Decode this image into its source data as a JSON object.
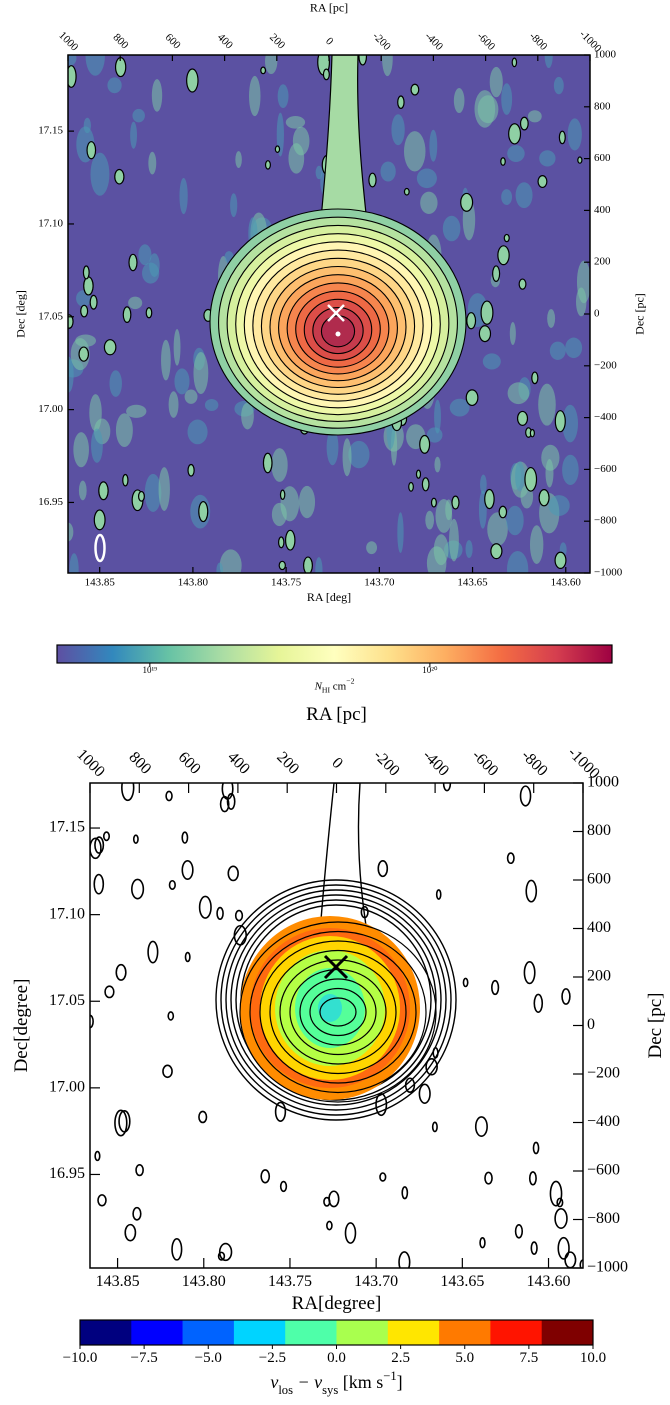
{
  "chart_data": [
    {
      "type": "map",
      "x_label": "RA [deg]",
      "y_label": "Dec [deg]",
      "x2_label": "RA [pc]",
      "y2_label": "Dec [pc]",
      "xlim": [
        143.867,
        143.587
      ],
      "xticks": [
        143.85,
        {
          "value": 143.8,
          "label": "143.80"
        },
        143.75,
        {
          "value": 143.7,
          "label": "143.70"
        },
        143.65,
        {
          "value": 143.6,
          "label": "143.60"
        }
      ],
      "ylim": [
        16.912,
        17.191
      ],
      "yticks": [
        16.95,
        {
          "value": 17,
          "label": "17.00"
        },
        17.05,
        {
          "value": 17.1,
          "label": "17.10"
        },
        17.15
      ],
      "x2lim": [
        1000,
        -1000
      ],
      "x2ticks": [
        1000,
        800,
        600,
        400,
        200,
        0,
        -200,
        -400,
        -600,
        -800,
        -1000
      ],
      "y2lim": [
        -1000,
        1000
      ],
      "y2ticks": [
        {
          "value": -1000,
          "label": "−1000"
        },
        {
          "value": -800,
          "label": "−800"
        },
        {
          "value": -600,
          "label": "−600"
        },
        {
          "value": -400,
          "label": "−400"
        },
        {
          "value": -200,
          "label": "−200"
        },
        0,
        200,
        400,
        600,
        800,
        1000
      ],
      "colorbar": {
        "scale": "log",
        "discrete": false,
        "lim": [
          4.66e+18,
          4.47e+20
        ],
        "ticks": [
          {
            "value": 1e+19,
            "label": "10¹⁹"
          },
          {
            "value": 1e+20,
            "label": "10²⁰"
          }
        ],
        "label": [
          {
            "text": "N"
          },
          {
            "text": "HI",
            "pos": "sub"
          },
          {
            "text": " cm"
          },
          {
            "text": "−2",
            "pos": "sup"
          }
        ],
        "colors": [
          "#5e4fa2",
          "#3288bd",
          "#66c2a5",
          "#abdda4",
          "#e6f598",
          "#ffffbf",
          "#fee08b",
          "#fdae61",
          "#f46d43",
          "#d53e4f",
          "#9e0142"
        ]
      }
    },
    {
      "type": "map",
      "x_label": "RA[degree]",
      "y_label": "Dec[degree]",
      "x2_label": "RA [pc]",
      "y2_label": "Dec [pc]",
      "xlim": [
        143.866,
        143.58
      ],
      "xticks": [
        143.85,
        {
          "value": 143.8,
          "label": "143.80"
        },
        143.75,
        {
          "value": 143.7,
          "label": "143.70"
        },
        143.65,
        {
          "value": 143.6,
          "label": "143.60"
        }
      ],
      "ylim": [
        16.896,
        17.176
      ],
      "yticks": [
        16.95,
        {
          "value": 17,
          "label": "17.00"
        },
        17.05,
        {
          "value": 17.1,
          "label": "17.10"
        },
        17.15
      ],
      "x2lim": [
        1000,
        -1000
      ],
      "x2ticks": [
        1000,
        800,
        600,
        400,
        200,
        0,
        -200,
        -400,
        -600,
        -800,
        -1000
      ],
      "y2lim": [
        -1000,
        1000
      ],
      "y2ticks": [
        {
          "value": -1000,
          "label": "−1000"
        },
        {
          "value": -800,
          "label": "−800"
        },
        {
          "value": -600,
          "label": "−600"
        },
        {
          "value": -400,
          "label": "−400"
        },
        {
          "value": -200,
          "label": "−200"
        },
        0,
        200,
        400,
        600,
        800,
        1000
      ],
      "colorbar": {
        "scale": "linear",
        "discrete": true,
        "lim": [
          -10,
          10
        ],
        "ticks": [
          {
            "value": -10,
            "label": "−10.0"
          },
          {
            "value": -7.5,
            "label": "−7.5"
          },
          {
            "value": -5,
            "label": "−5.0"
          },
          {
            "value": -2.5,
            "label": "−2.5"
          },
          {
            "value": 0,
            "label": "0.0"
          },
          2.5,
          {
            "value": 5,
            "label": "5.0"
          },
          7.5,
          {
            "value": 10,
            "label": "10.0"
          }
        ],
        "label": [
          {
            "text": "v"
          },
          {
            "text": "los",
            "pos": "sub"
          },
          {
            "text": " − v"
          },
          {
            "text": "sys",
            "pos": "sub"
          },
          {
            "text": " [km s"
          },
          {
            "text": "−1",
            "pos": "sup"
          },
          {
            "text": "]"
          }
        ],
        "colors": [
          "#00007f",
          "#0000ff",
          "#0063ff",
          "#00d4ff",
          "#4effa9",
          "#a9ff4e",
          "#ffe600",
          "#ff7a00",
          "#ff1400",
          "#7f0000"
        ]
      }
    }
  ]
}
